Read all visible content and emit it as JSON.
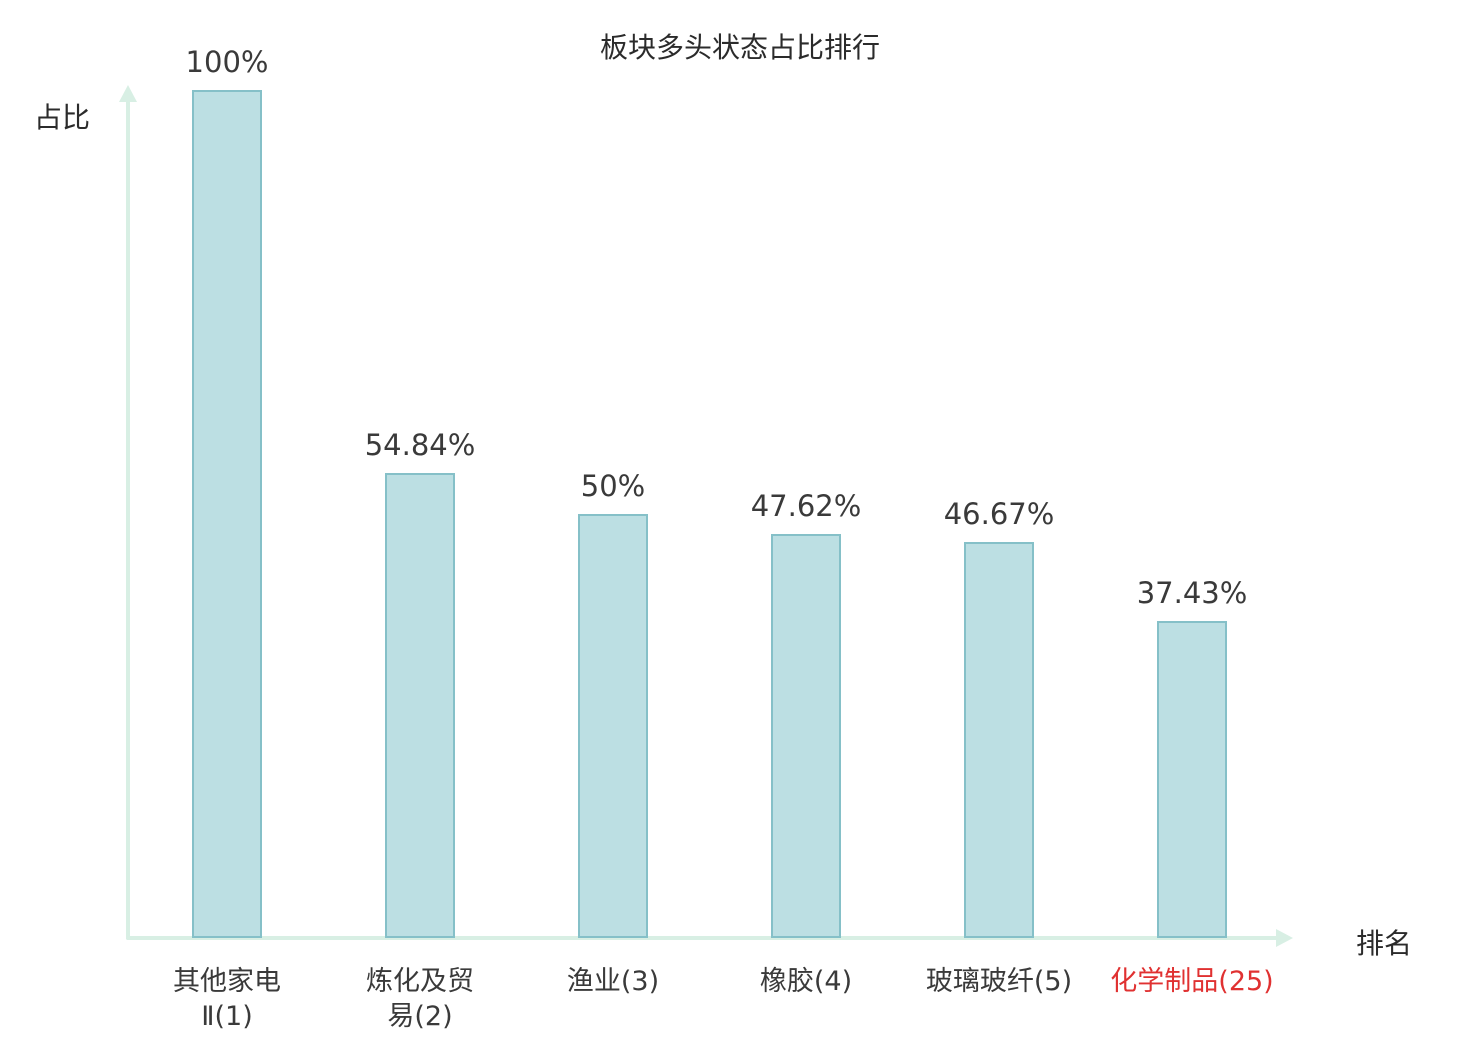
{
  "chart_data": {
    "type": "bar",
    "title": "板块多头状态占比排行",
    "xlabel": "排名",
    "ylabel": "占比",
    "categories": [
      "其他家电\nⅡ(1)",
      "炼化及贸\n易(2)",
      "渔业(3)",
      "橡胶(4)",
      "玻璃玻纤(5)",
      "化学制品(25)"
    ],
    "values": [
      100,
      54.84,
      50,
      47.62,
      46.67,
      37.43
    ],
    "value_labels": [
      "100%",
      "54.84%",
      "50%",
      "47.62%",
      "46.67%",
      "37.43%"
    ],
    "category_colors": [
      "#3a3a3a",
      "#3a3a3a",
      "#3a3a3a",
      "#3a3a3a",
      "#3a3a3a",
      "#e03131"
    ],
    "ylim": [
      0,
      100
    ],
    "grid": false,
    "legend": "none",
    "colors": {
      "bar_fill": "#bcdfe3",
      "bar_border": "#85c0c8",
      "axis": "#d8efe4",
      "text": "#3a3a3a",
      "highlight": "#e03131"
    }
  }
}
